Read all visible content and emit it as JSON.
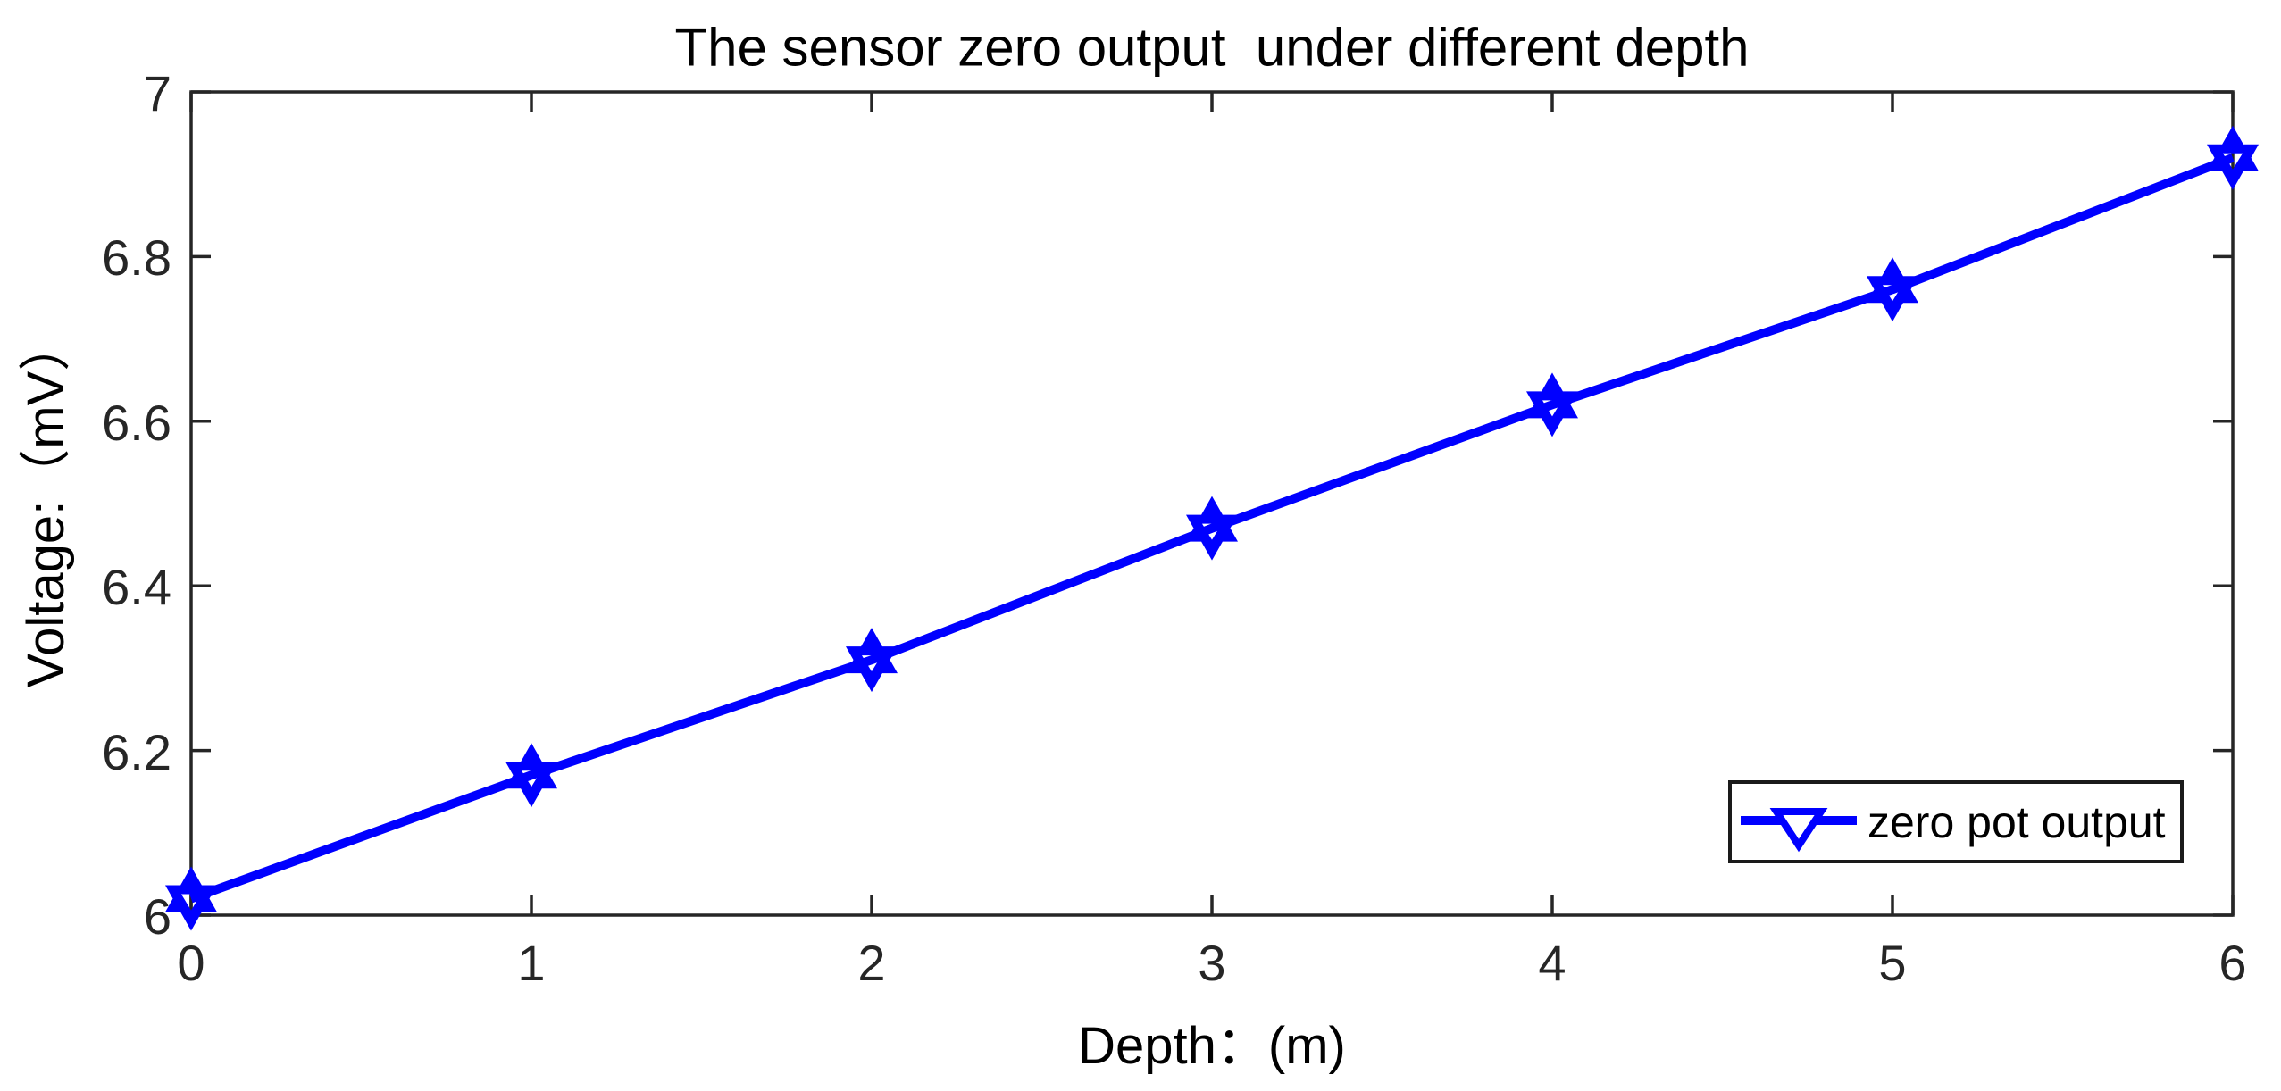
{
  "chart_data": {
    "type": "line",
    "title": "The sensor zero output  under different depth",
    "xlabel": "Depth：(m)",
    "ylabel": "Voltage:（mV）",
    "x": [
      0,
      1,
      2,
      3,
      4,
      5,
      6
    ],
    "series": [
      {
        "name": "zero pot output",
        "values": [
          6.02,
          6.17,
          6.31,
          6.47,
          6.62,
          6.76,
          6.92
        ]
      }
    ],
    "xlim": [
      0,
      6
    ],
    "ylim": [
      6,
      7
    ],
    "xticks": [
      "0",
      "1",
      "2",
      "3",
      "4",
      "5",
      "6"
    ],
    "yticks": [
      "6",
      "6.2",
      "6.4",
      "6.6",
      "6.8",
      "7"
    ],
    "line_color": "#0000ff",
    "axis_color": "#262626",
    "tick_label_color": "#262626",
    "marker": "triangle-down-hollow",
    "grid": false,
    "legend_position": "lower-right"
  }
}
